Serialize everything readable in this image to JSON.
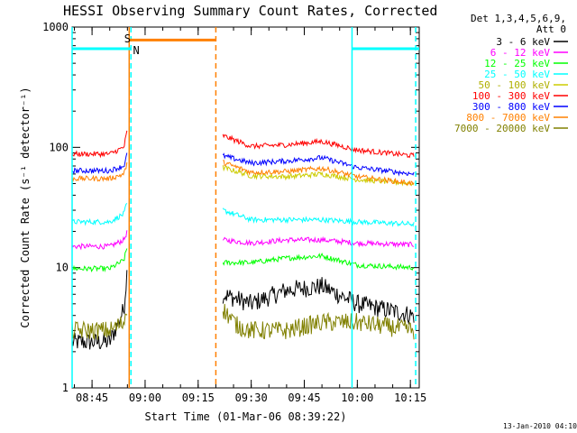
{
  "chart_data": {
    "type": "line",
    "title": "HESSI Observing Summary Count Rates, Corrected",
    "xlabel": "Start Time (01-Mar-06 08:39:22)",
    "ylabel": "Corrected Count Rate (s⁻¹ detector⁻¹)",
    "y_scale": "log",
    "ylim": [
      1,
      1000
    ],
    "y_ticks": [
      {
        "value": 1,
        "label": "1"
      },
      {
        "value": 10,
        "label": "10"
      },
      {
        "value": 100,
        "label": "100"
      },
      {
        "value": 1000,
        "label": "1000"
      }
    ],
    "x_range_minutes": [
      "08:39:22",
      "10:17:30"
    ],
    "x_ticks": [
      "08:45",
      "09:00",
      "09:15",
      "09:30",
      "09:45",
      "10:00",
      "10:15"
    ],
    "grid": false,
    "legend_header": [
      "Det 1,3,4,5,6,9,",
      "Att 0"
    ],
    "legend_position": "right",
    "series": [
      {
        "name": "3 - 6 keV",
        "color": "#000000",
        "segments": [
          {
            "x": [
              "08:39:22",
              "08:50:00",
              "08:54:00",
              "08:55:00"
            ],
            "y": [
              2.4,
              2.4,
              4.5,
              10
            ]
          },
          {
            "x": [
              "09:22:00",
              "09:30:00",
              "09:40:00",
              "09:50:00",
              "10:00:00",
              "10:16:00"
            ],
            "y": [
              6,
              5,
              6.5,
              7,
              5,
              4
            ]
          }
        ]
      },
      {
        "name": "6 - 12 keV",
        "color": "#ff00ff",
        "segments": [
          {
            "x": [
              "08:39:22",
              "08:50:00",
              "08:54:00",
              "08:55:00"
            ],
            "y": [
              15,
              15,
              17,
              20
            ]
          },
          {
            "x": [
              "09:22:00",
              "09:30:00",
              "09:40:00",
              "09:50:00",
              "10:00:00",
              "10:16:00"
            ],
            "y": [
              17,
              16,
              17,
              17,
              16,
              15.5
            ]
          }
        ]
      },
      {
        "name": "12 - 25 keV",
        "color": "#00ff00",
        "segments": [
          {
            "x": [
              "08:39:22",
              "08:50:00",
              "08:54:00",
              "08:55:00"
            ],
            "y": [
              9.8,
              9.8,
              11.5,
              15
            ]
          },
          {
            "x": [
              "09:22:00",
              "09:30:00",
              "09:40:00",
              "09:50:00",
              "10:00:00",
              "10:16:00"
            ],
            "y": [
              11,
              11,
              12,
              12.5,
              10.5,
              10
            ]
          }
        ]
      },
      {
        "name": "25 - 50 keV",
        "color": "#00ffff",
        "segments": [
          {
            "x": [
              "08:39:22",
              "08:50:00",
              "08:54:00",
              "08:55:00"
            ],
            "y": [
              24,
              24,
              28,
              35
            ]
          },
          {
            "x": [
              "09:22:00",
              "09:30:00",
              "09:40:00",
              "09:50:00",
              "10:00:00",
              "10:16:00"
            ],
            "y": [
              30,
              25,
              25,
              25,
              24,
              23
            ]
          }
        ]
      },
      {
        "name": "50 - 100 keV",
        "color": "#cccc00",
        "segments": [
          {
            "x": [
              "09:22:00",
              "09:30:00",
              "09:40:00",
              "09:50:00",
              "10:00:00",
              "10:16:00"
            ],
            "y": [
              68,
              58,
              57,
              60,
              54,
              50
            ]
          }
        ]
      },
      {
        "name": "100 - 300 keV",
        "color": "#ff0000",
        "segments": [
          {
            "x": [
              "08:39:22",
              "08:50:00",
              "08:54:00",
              "08:55:00"
            ],
            "y": [
              88,
              88,
              100,
              140
            ]
          },
          {
            "x": [
              "09:22:00",
              "09:30:00",
              "09:40:00",
              "09:50:00",
              "10:00:00",
              "10:16:00"
            ],
            "y": [
              125,
              102,
              105,
              112,
              95,
              85
            ]
          }
        ]
      },
      {
        "name": "300 - 800 keV",
        "color": "#0000ff",
        "segments": [
          {
            "x": [
              "08:39:22",
              "08:50:00",
              "08:54:00",
              "08:55:00"
            ],
            "y": [
              64,
              64,
              70,
              90
            ]
          },
          {
            "x": [
              "09:22:00",
              "09:30:00",
              "09:40:00",
              "09:50:00",
              "10:00:00",
              "10:16:00"
            ],
            "y": [
              85,
              74,
              77,
              82,
              68,
              60
            ]
          }
        ]
      },
      {
        "name": "800 - 7000 keV",
        "color": "#ff8000",
        "segments": [
          {
            "x": [
              "08:39:22",
              "08:50:00",
              "08:54:00",
              "08:55:00"
            ],
            "y": [
              55,
              55,
              60,
              75
            ]
          },
          {
            "x": [
              "09:22:00",
              "09:30:00",
              "09:40:00",
              "09:50:00",
              "10:00:00",
              "10:16:00"
            ],
            "y": [
              75,
              62,
              63,
              67,
              57,
              50
            ]
          }
        ]
      },
      {
        "name": "7000 - 20000 keV",
        "color": "#808000",
        "segments": [
          {
            "x": [
              "08:39:22",
              "08:50:00",
              "08:54:00",
              "08:55:00"
            ],
            "y": [
              3,
              3,
              3.5,
              5
            ]
          },
          {
            "x": [
              "09:22:00",
              "09:26:00",
              "09:30:00",
              "09:40:00",
              "09:50:00",
              "10:00:00",
              "10:16:00"
            ],
            "y": [
              4.5,
              3.3,
              3,
              3,
              3.5,
              3.5,
              3
            ]
          }
        ]
      }
    ],
    "markers": {
      "vertical_lines": [
        {
          "time": "08:39:22",
          "color": "#00ffff",
          "style": "solid"
        },
        {
          "time": "08:55:30",
          "color": "#ff8000",
          "style": "solid"
        },
        {
          "time": "08:56:00",
          "color": "#00ffff",
          "style": "dashed"
        },
        {
          "time": "09:20:00",
          "color": "#ff8000",
          "style": "dashed"
        },
        {
          "time": "09:58:30",
          "color": "#00ffff",
          "style": "solid"
        },
        {
          "time": "10:16:30",
          "color": "#00ffff",
          "style": "dashed"
        }
      ],
      "bars": [
        {
          "label": "",
          "color": "#00ffff",
          "x": [
            "08:39:22",
            "08:56:00"
          ],
          "y": 660
        },
        {
          "label": "",
          "color": "#00ffff",
          "x": [
            "09:58:30",
            "10:17:30"
          ],
          "y": 660
        },
        {
          "label": "",
          "color": "#ff8000",
          "x": [
            "08:55:30",
            "09:20:00"
          ],
          "y": 780
        }
      ],
      "labels": [
        {
          "text": "S",
          "color": "#ff8000",
          "time": "08:55:00",
          "y": 800
        },
        {
          "text": "N",
          "color": "#00ffff",
          "time": "08:57:30",
          "y": 640
        }
      ]
    },
    "footer_stamp": "13-Jan-2010 04:10"
  }
}
